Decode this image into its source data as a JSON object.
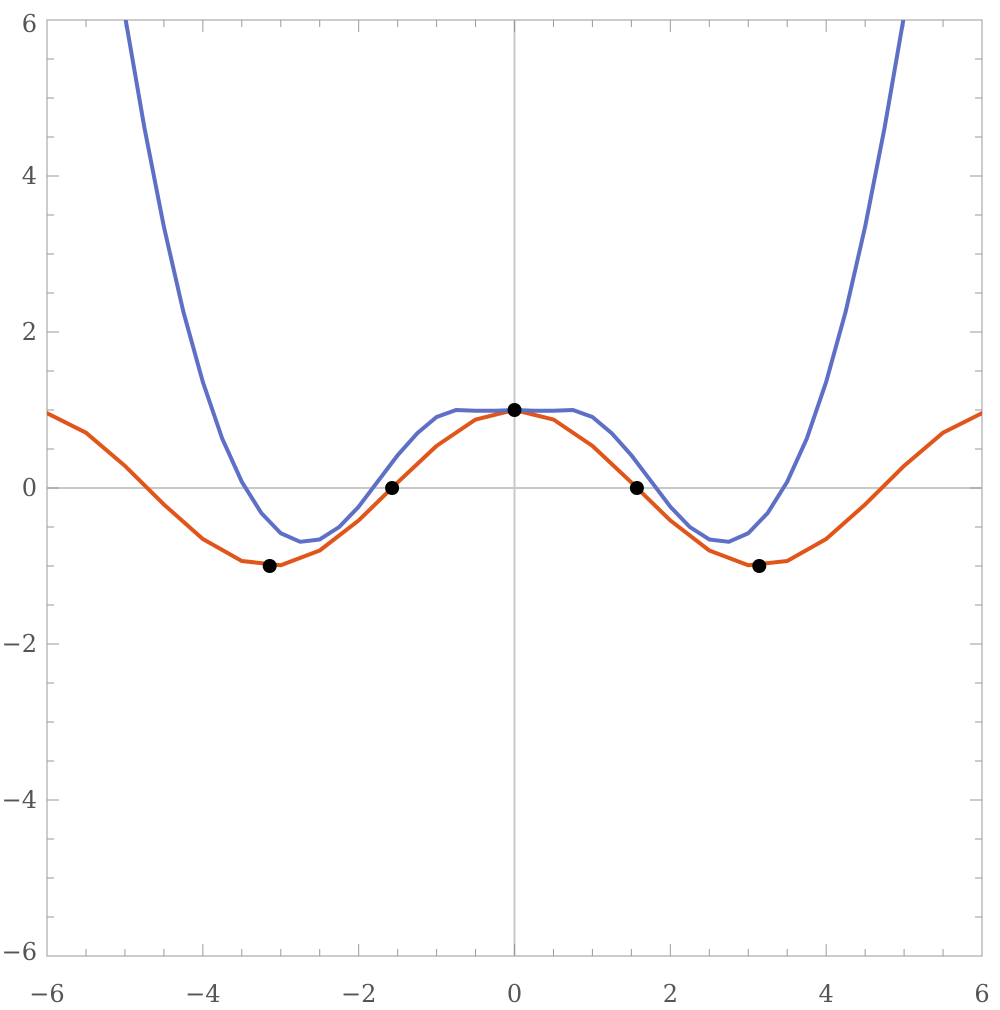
{
  "chart_data": {
    "type": "line",
    "title": "",
    "xlabel": "",
    "ylabel": "",
    "xlim": [
      -6,
      6
    ],
    "ylim": [
      -6,
      6
    ],
    "grid": false,
    "axes_through_origin": true,
    "x_ticks": [
      -6,
      -4,
      -2,
      0,
      2,
      4,
      6
    ],
    "y_ticks": [
      -6,
      -4,
      -2,
      0,
      2,
      4,
      6
    ],
    "x_tick_labels": [
      "−6",
      "−4",
      "−2",
      "0",
      "2",
      "4",
      "6"
    ],
    "y_tick_labels": [
      "−6",
      "−4",
      "−2",
      "0",
      "2",
      "4",
      "6"
    ],
    "series": [
      {
        "color": "#e0561a",
        "x": [
          -6,
          -5.5,
          -5,
          -4.5,
          -4,
          -3.5,
          -3,
          -2.5,
          -2,
          -1.5,
          -1,
          -0.5,
          0,
          0.5,
          1,
          1.5,
          2,
          2.5,
          3,
          3.5,
          4,
          4.5,
          5,
          5.5,
          6
        ],
        "y": [
          0.96,
          0.709,
          0.284,
          -0.211,
          -0.654,
          -0.936,
          -0.99,
          -0.801,
          -0.416,
          0.071,
          0.54,
          0.878,
          1,
          0.878,
          0.54,
          0.071,
          -0.416,
          -0.801,
          -0.99,
          -0.936,
          -0.654,
          -0.211,
          0.284,
          0.709,
          0.96
        ]
      },
      {
        "color": "#5e6fc6",
        "x": [
          -4.99,
          -4.75,
          -4.5,
          -4.25,
          -4,
          -3.75,
          -3.5,
          -3.25,
          -3,
          -2.75,
          -2.5,
          -2.25,
          -2,
          -1.75,
          -1.5,
          -1.25,
          -1,
          -0.75,
          -0.5,
          -0.25,
          0,
          0.25,
          0.5,
          0.75,
          1,
          1.25,
          1.5,
          1.75,
          2,
          2.25,
          2.5,
          2.75,
          3,
          3.25,
          3.5,
          3.75,
          4,
          4.25,
          4.5,
          4.75,
          4.99
        ],
        "y": [
          6.0,
          4.62,
          3.35,
          2.26,
          1.36,
          0.63,
          0.08,
          -0.32,
          -0.58,
          -0.69,
          -0.66,
          -0.5,
          -0.24,
          0.09,
          0.42,
          0.7,
          0.91,
          1.0,
          0.99,
          0.99,
          1.0,
          0.99,
          0.99,
          1.0,
          0.91,
          0.7,
          0.42,
          0.09,
          -0.24,
          -0.5,
          -0.66,
          -0.69,
          -0.58,
          -0.32,
          0.08,
          0.63,
          1.36,
          2.26,
          3.35,
          4.62,
          6.0
        ]
      }
    ],
    "points": {
      "color": "#000000",
      "x": [
        -3.14159,
        -1.5708,
        0,
        1.5708,
        3.14159
      ],
      "y": [
        -1,
        0,
        1,
        0,
        -1
      ]
    }
  }
}
